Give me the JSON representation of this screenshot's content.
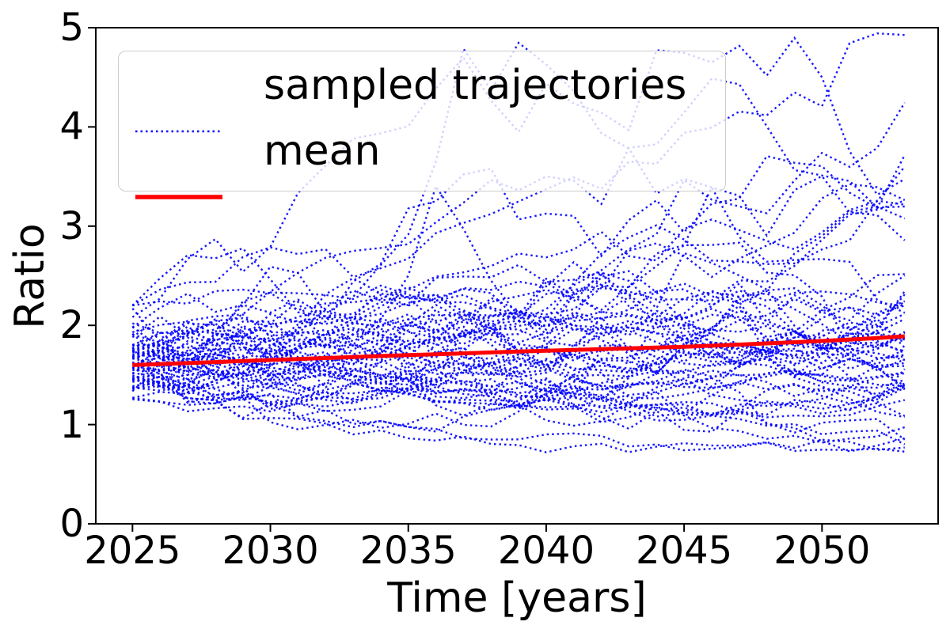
{
  "chart": {
    "ylabel": "Ratio",
    "xlabel": "Time [years]",
    "legend": {
      "items": [
        {
          "label": "sampled trajectories",
          "color": "#0000ff",
          "style": "dotted"
        },
        {
          "label": "mean",
          "color": "#ff0000",
          "style": "solid"
        }
      ],
      "position": "upper-left",
      "frame_alpha": 0.8
    }
  },
  "chart_data": {
    "type": "line",
    "title": "",
    "xlabel": "Time [years]",
    "ylabel": "Ratio",
    "xlim": [
      2023.67,
      2054.21
    ],
    "ylim": [
      0,
      5
    ],
    "x_ticks": [
      2025,
      2030,
      2035,
      2040,
      2045,
      2050
    ],
    "y_ticks": [
      0,
      1,
      2,
      3,
      4,
      5
    ],
    "grid": false,
    "legend_position": "upper-left",
    "x_years": [
      2025,
      2026,
      2027,
      2028,
      2029,
      2030,
      2031,
      2032,
      2033,
      2034,
      2035,
      2036,
      2037,
      2038,
      2039,
      2040,
      2041,
      2042,
      2043,
      2044,
      2045,
      2046,
      2047,
      2048,
      2049,
      2050,
      2051,
      2052,
      2053
    ],
    "series": [
      {
        "name": "mean",
        "kind": "line",
        "color": "#ff0000",
        "linewidth": 5,
        "values": [
          1.6,
          1.61,
          1.62,
          1.63,
          1.641,
          1.651,
          1.661,
          1.671,
          1.681,
          1.691,
          1.7,
          1.709,
          1.718,
          1.727,
          1.736,
          1.745,
          1.753,
          1.761,
          1.769,
          1.777,
          1.785,
          1.795,
          1.806,
          1.818,
          1.83,
          1.843,
          1.857,
          1.872,
          1.89
        ]
      },
      {
        "name": "sampled trajectories",
        "kind": "ensemble",
        "color": "#0000ff",
        "linestyle": "dotted",
        "linewidth": 2.4,
        "count": 60,
        "start_range_observed": [
          1.15,
          2.2
        ],
        "end_range_observed": [
          0.85,
          4.85
        ],
        "generator": {
          "seed": 1337,
          "start_mean": 1.62,
          "start_spread": 0.145,
          "start_min": 1.15,
          "start_max": 2.2,
          "drift_min": 0.001,
          "drift_max": 0.008,
          "vol_min": 0.055,
          "vol_max": 0.11,
          "reflect_min": 0.72,
          "reflect_max": 4.95,
          "hero": {
            "start": 1.8,
            "drift": 0.034,
            "vol": 0.05
          }
        }
      }
    ]
  }
}
